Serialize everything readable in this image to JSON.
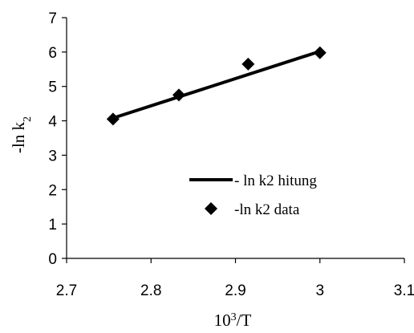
{
  "chart_data": {
    "type": "scatter",
    "xlabel_base": "10",
    "xlabel_sup": "3",
    "xlabel_rest": "/T",
    "ylabel_main": "-ln k",
    "ylabel_sub": "2",
    "xlim": [
      2.7,
      3.1
    ],
    "ylim": [
      0,
      7
    ],
    "x_ticks": [
      "2.7",
      "2.8",
      "2.9",
      "3",
      "3.1"
    ],
    "y_ticks": [
      "0",
      "1",
      "2",
      "3",
      "4",
      "5",
      "6",
      "7"
    ],
    "grid": false,
    "legend_position": "lower-right",
    "series": [
      {
        "name": "- ln k2 hitung",
        "kind": "line",
        "color": "#000000",
        "x": [
          2.755,
          3.0
        ],
        "y": [
          4.08,
          6.02
        ]
      },
      {
        "name": "-ln k2 data",
        "kind": "marker",
        "marker": "diamond",
        "color": "#000000",
        "x": [
          2.755,
          2.833,
          2.915,
          3.0
        ],
        "y": [
          4.05,
          4.75,
          5.65,
          5.98
        ]
      }
    ]
  }
}
